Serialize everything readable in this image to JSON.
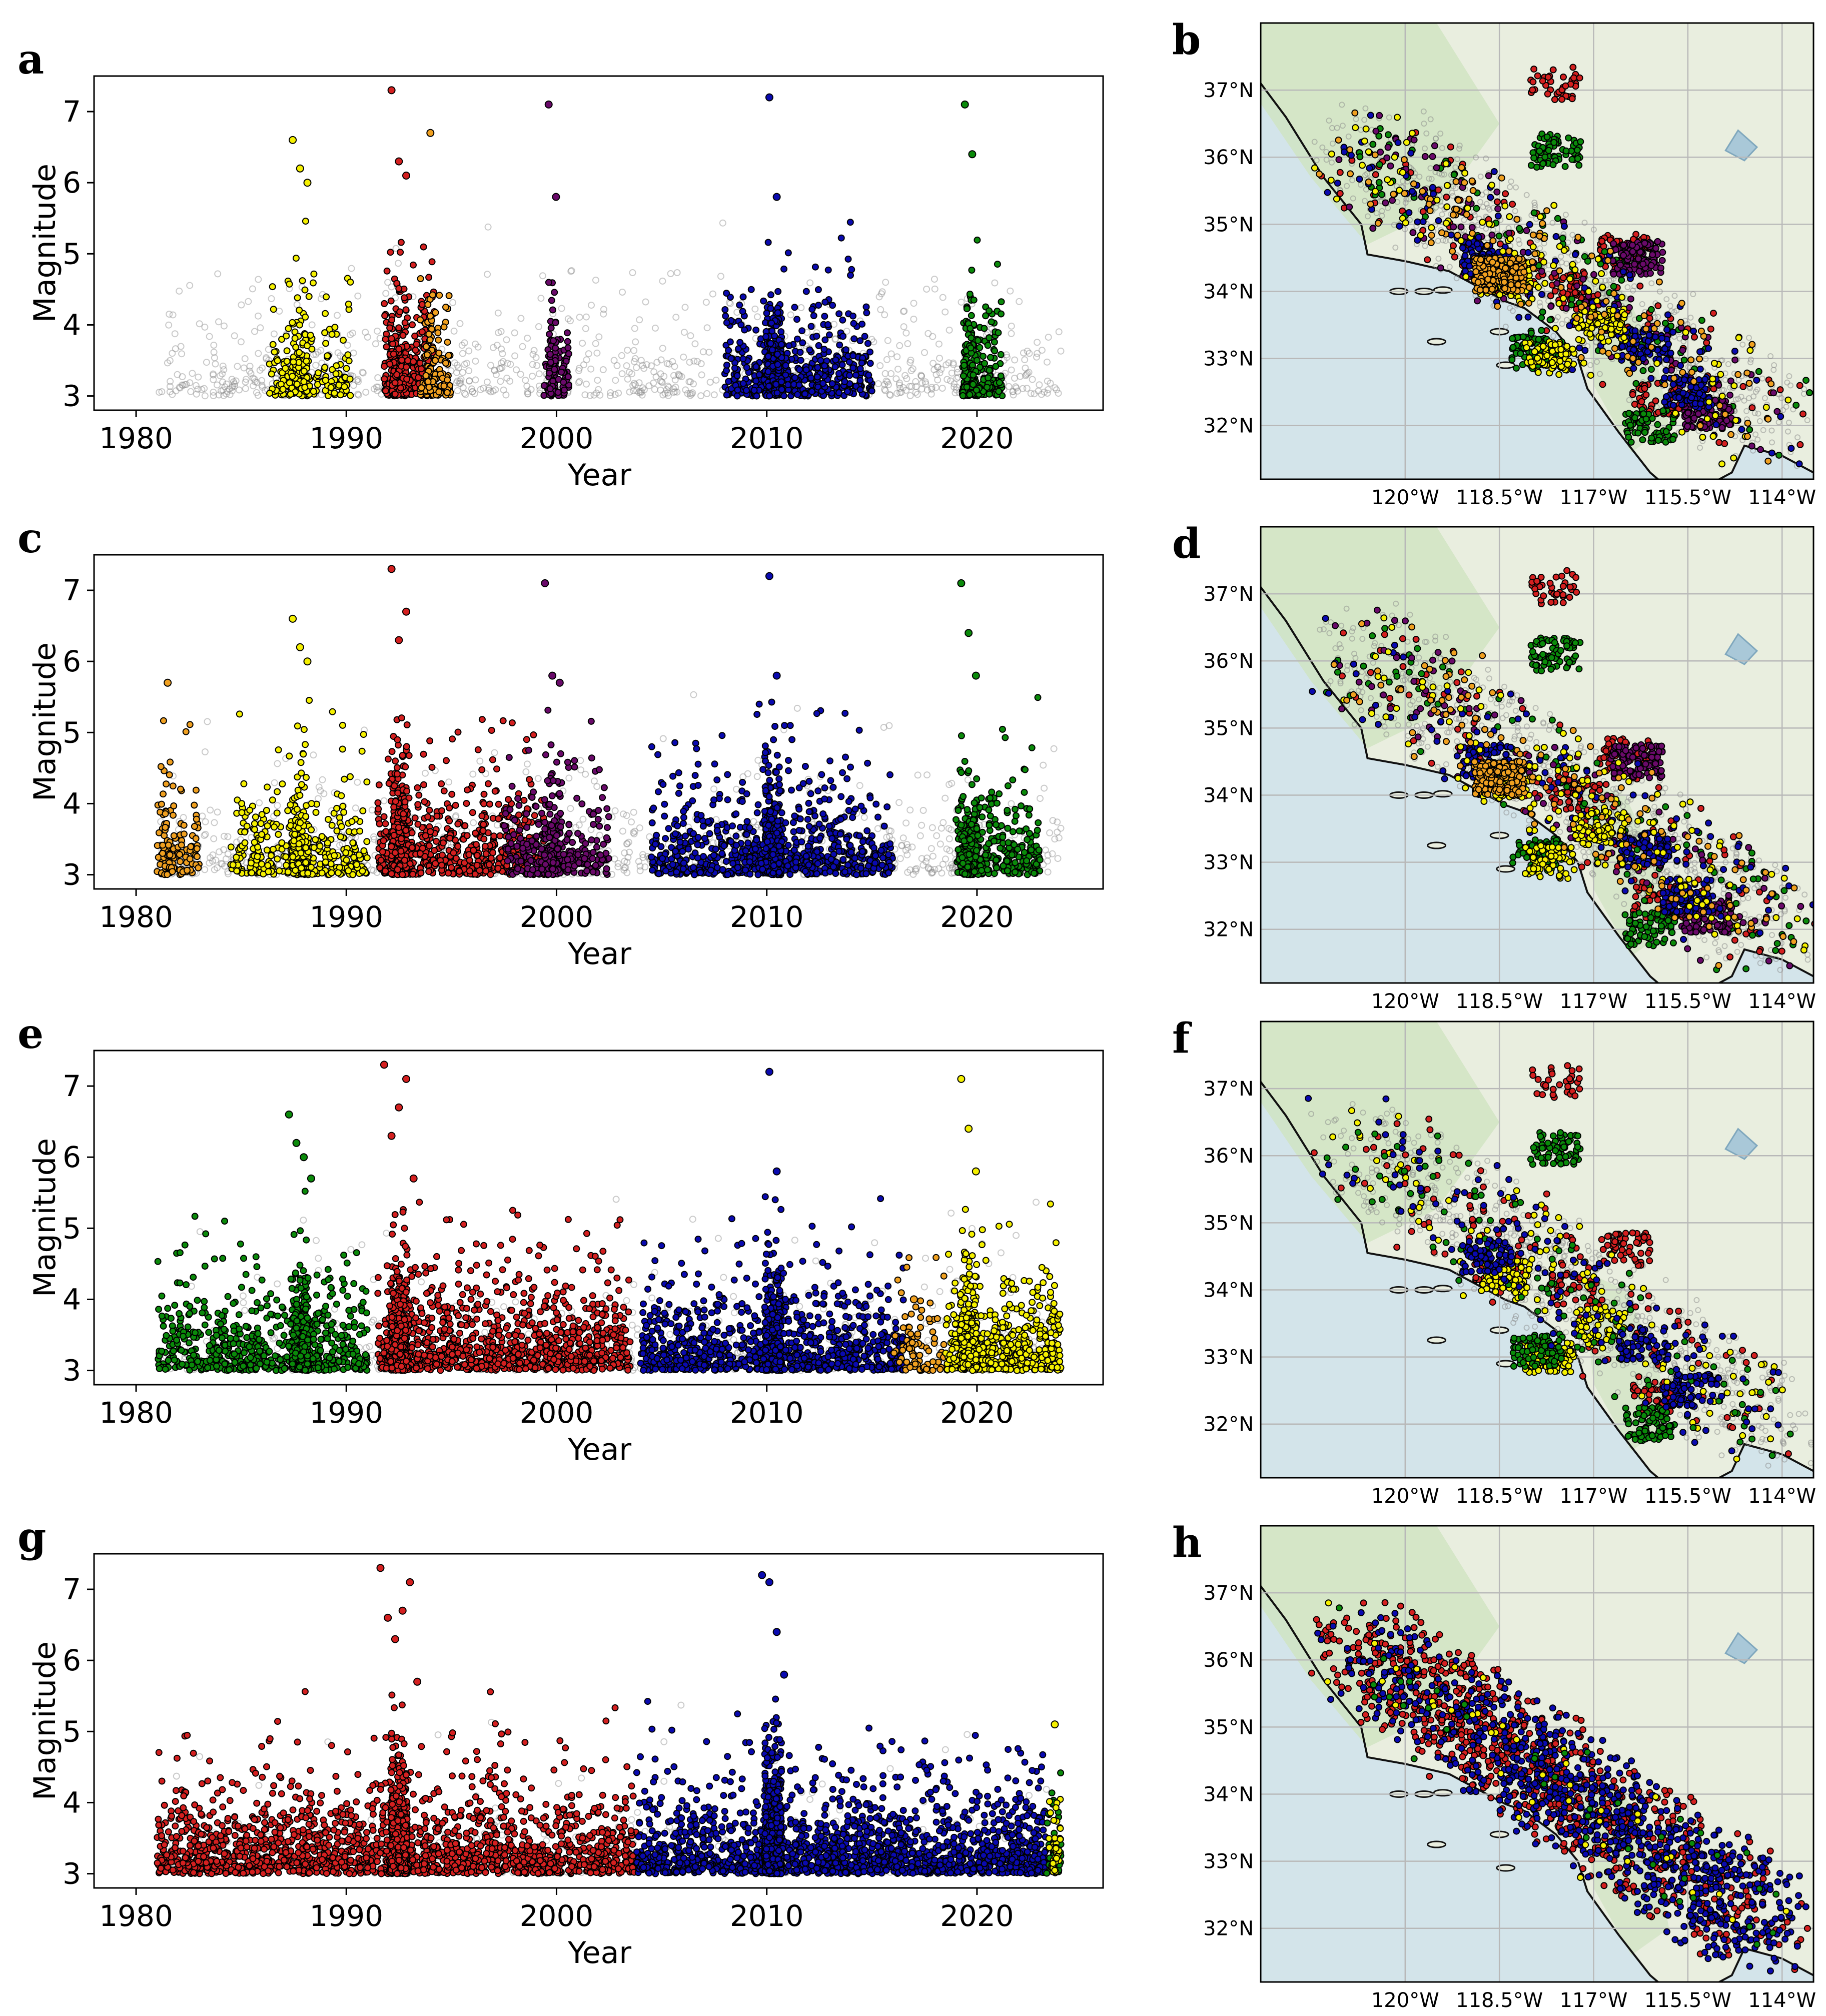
{
  "figure": {
    "description_note": "Four rows of earthquake clustering results: magnitude-vs-year scatter plots (left) and corresponding epicenter maps of Southern California (right)."
  },
  "colors": {
    "background_gray": "#8a8a8a",
    "yellow": "#f5f000",
    "red": "#d42020",
    "purple": "#6a0a6a",
    "blue": "#0a0ab0",
    "green": "#0a8a0a",
    "orange": "#f0a020",
    "land": "#e9eedf",
    "land_green": "#cfe3c0",
    "ocean": "#d3e4ea",
    "coast": "#111111",
    "grid": "#b8b8b8"
  },
  "chart_data": [
    {
      "type": "scatter",
      "panel": "a",
      "title": "",
      "xlabel": "Year",
      "ylabel": "Magnitude",
      "xlim": [
        1978,
        2026
      ],
      "ylim": [
        2.8,
        7.5
      ],
      "xticks": [
        1980,
        1990,
        2000,
        2010,
        2020
      ],
      "yticks": [
        3,
        4,
        5,
        6,
        7
      ],
      "series": [
        {
          "name": "background",
          "color": "gray",
          "hollow": true,
          "segments": [
            [
              1981,
              2024
            ]
          ],
          "density": 900,
          "dense": false
        },
        {
          "name": "cluster-yellow",
          "color": "yellow",
          "segments": [
            [
              1986.3,
              1990.2
            ]
          ],
          "density": 260,
          "peak": 1987.8,
          "maxmag": [
            6.6,
            6.2,
            6.0
          ]
        },
        {
          "name": "cluster-red",
          "color": "red",
          "segments": [
            [
              1991.8,
              1994.2
            ]
          ],
          "density": 420,
          "peak": 1992.5,
          "maxmag": [
            7.3,
            6.3,
            6.1
          ]
        },
        {
          "name": "cluster-orange",
          "color": "orange",
          "segments": [
            [
              1993.5,
              1995.0
            ]
          ],
          "density": 140,
          "peak": 1994.0,
          "maxmag": [
            6.7
          ]
        },
        {
          "name": "cluster-purple",
          "color": "purple",
          "segments": [
            [
              1999.4,
              2000.6
            ]
          ],
          "density": 120,
          "peak": 1999.8,
          "maxmag": [
            7.1,
            5.8
          ]
        },
        {
          "name": "cluster-blue",
          "color": "blue",
          "segments": [
            [
              2008.0,
              2015.0
            ]
          ],
          "density": 650,
          "peak": 2010.3,
          "maxmag": [
            7.2,
            5.8
          ]
        },
        {
          "name": "cluster-green",
          "color": "green",
          "segments": [
            [
              2019.3,
              2021.2
            ]
          ],
          "density": 260,
          "peak": 2019.6,
          "maxmag": [
            7.1,
            6.4
          ]
        }
      ]
    },
    {
      "type": "scatter",
      "panel": "c",
      "title": "",
      "xlabel": "Year",
      "ylabel": "Magnitude",
      "xlim": [
        1978,
        2026
      ],
      "ylim": [
        2.8,
        7.5
      ],
      "xticks": [
        1980,
        1990,
        2000,
        2010,
        2020
      ],
      "yticks": [
        3,
        4,
        5,
        6,
        7
      ],
      "series": [
        {
          "name": "background",
          "color": "gray",
          "hollow": true,
          "segments": [
            [
              1981,
              2024
            ]
          ],
          "density": 800,
          "dense": false
        },
        {
          "name": "cluster-orange",
          "color": "orange",
          "segments": [
            [
              1981,
              1983
            ]
          ],
          "density": 160,
          "peak": 1981.5,
          "maxmag": [
            5.7
          ]
        },
        {
          "name": "cluster-yellow",
          "color": "yellow",
          "segments": [
            [
              1984.5,
              1991.0
            ]
          ],
          "density": 520,
          "peak": 1987.8,
          "maxmag": [
            6.6,
            6.2,
            6.0
          ]
        },
        {
          "name": "cluster-red",
          "color": "red",
          "segments": [
            [
              1991.5,
              1999.5
            ]
          ],
          "density": 900,
          "peak": 1992.5,
          "maxmag": [
            7.3,
            6.3,
            6.7
          ]
        },
        {
          "name": "cluster-purple",
          "color": "purple",
          "segments": [
            [
              1997.5,
              2002.5
            ]
          ],
          "density": 380,
          "peak": 1999.8,
          "maxmag": [
            7.1,
            5.8,
            5.7
          ]
        },
        {
          "name": "cluster-blue",
          "color": "blue",
          "segments": [
            [
              2004.5,
              2016.0
            ]
          ],
          "density": 1000,
          "peak": 2010.3,
          "maxmag": [
            7.2,
            5.8
          ]
        },
        {
          "name": "cluster-green",
          "color": "green",
          "segments": [
            [
              2019.0,
              2023.0
            ]
          ],
          "density": 420,
          "peak": 2019.6,
          "maxmag": [
            7.1,
            6.4,
            5.8
          ]
        }
      ]
    },
    {
      "type": "scatter",
      "panel": "e",
      "title": "",
      "xlabel": "Year",
      "ylabel": "Magnitude",
      "xlim": [
        1978,
        2026
      ],
      "ylim": [
        2.8,
        7.5
      ],
      "xticks": [
        1980,
        1990,
        2000,
        2010,
        2020
      ],
      "yticks": [
        3,
        4,
        5,
        6,
        7
      ],
      "series": [
        {
          "name": "background",
          "color": "gray",
          "hollow": true,
          "segments": [
            [
              1981,
              2024
            ]
          ],
          "density": 600,
          "dense": false
        },
        {
          "name": "cluster-green",
          "color": "green",
          "segments": [
            [
              1981.0,
              1991.0
            ]
          ],
          "density": 900,
          "peak": 1987.8,
          "maxmag": [
            6.6,
            6.2,
            6.0,
            5.7
          ]
        },
        {
          "name": "cluster-red",
          "color": "red",
          "segments": [
            [
              1991.5,
              2003.5
            ]
          ],
          "density": 1500,
          "peak": 1992.5,
          "maxmag": [
            7.3,
            6.3,
            6.7,
            7.1,
            5.7
          ]
        },
        {
          "name": "cluster-blue",
          "color": "blue",
          "segments": [
            [
              2004.0,
              2016.5
            ]
          ],
          "density": 1300,
          "peak": 2010.3,
          "maxmag": [
            7.2,
            5.8
          ]
        },
        {
          "name": "cluster-orange",
          "color": "orange",
          "segments": [
            [
              2016.0,
              2018.5
            ]
          ],
          "density": 90,
          "peak": 2017.0,
          "maxmag": [
            4.0
          ]
        },
        {
          "name": "cluster-yellow",
          "color": "yellow",
          "segments": [
            [
              2018.5,
              2024.0
            ]
          ],
          "density": 700,
          "peak": 2019.6,
          "maxmag": [
            7.1,
            6.4,
            5.8
          ]
        }
      ]
    },
    {
      "type": "scatter",
      "panel": "g",
      "title": "",
      "xlabel": "Year",
      "ylabel": "Magnitude",
      "xlim": [
        1978,
        2026
      ],
      "ylim": [
        2.8,
        7.5
      ],
      "xticks": [
        1980,
        1990,
        2000,
        2010,
        2020
      ],
      "yticks": [
        3,
        4,
        5,
        6,
        7
      ],
      "series": [
        {
          "name": "background",
          "color": "gray",
          "hollow": true,
          "segments": [
            [
              1981,
              2024
            ]
          ],
          "density": 300,
          "dense": false
        },
        {
          "name": "cluster-red",
          "color": "red",
          "segments": [
            [
              1981.0,
              2003.8
            ]
          ],
          "density": 2600,
          "peak": 1992.5,
          "maxmag": [
            7.3,
            6.6,
            6.3,
            6.7,
            7.1,
            5.7
          ]
        },
        {
          "name": "cluster-blue",
          "color": "blue",
          "segments": [
            [
              2003.8,
              2023.3
            ]
          ],
          "density": 2400,
          "peak": 2010.3,
          "maxmag": [
            7.2,
            7.1,
            6.4,
            5.8
          ]
        },
        {
          "name": "cluster-green",
          "color": "green",
          "segments": [
            [
              2023.3,
              2024.0
            ]
          ],
          "density": 50,
          "peak": 2023.6,
          "maxmag": [
            4.0
          ]
        },
        {
          "name": "cluster-yellow",
          "color": "yellow",
          "segments": [
            [
              2023.4,
              2024.0
            ]
          ],
          "density": 40,
          "peak": 2023.7,
          "maxmag": [
            5.1
          ]
        }
      ]
    }
  ],
  "maps": [
    {
      "panel": "b",
      "clusters": [
        "red",
        "green",
        "purple",
        "blue",
        "yellow",
        "orange"
      ],
      "background": true
    },
    {
      "panel": "d",
      "clusters": [
        "red",
        "green",
        "purple",
        "blue",
        "yellow",
        "orange"
      ],
      "background": true
    },
    {
      "panel": "f",
      "clusters": [
        "red",
        "yellow",
        "green",
        "blue"
      ],
      "background": true
    },
    {
      "panel": "h",
      "clusters": [
        "red",
        "blue",
        "yellow",
        "green"
      ],
      "background": false
    }
  ],
  "map_axes": {
    "lon_ticks": [
      "120°W",
      "118.5°W",
      "117°W",
      "115.5°W",
      "114°W"
    ],
    "lat_ticks": [
      "37°N",
      "36°N",
      "35°N",
      "34°N",
      "33°N",
      "32°N"
    ],
    "lon_values": [
      -120,
      -118.5,
      -117,
      -115.5,
      -114
    ],
    "lat_values": [
      37,
      36,
      35,
      34,
      33,
      32
    ],
    "lon_range": [
      -122.3,
      -113.5
    ],
    "lat_range": [
      31.2,
      38.0
    ]
  },
  "labels": {
    "panel_letters_left": [
      "a",
      "c",
      "e",
      "g"
    ],
    "panel_letters_right": [
      "b",
      "d",
      "f",
      "h"
    ],
    "xlabel": "Year",
    "ylabel": "Magnitude"
  }
}
